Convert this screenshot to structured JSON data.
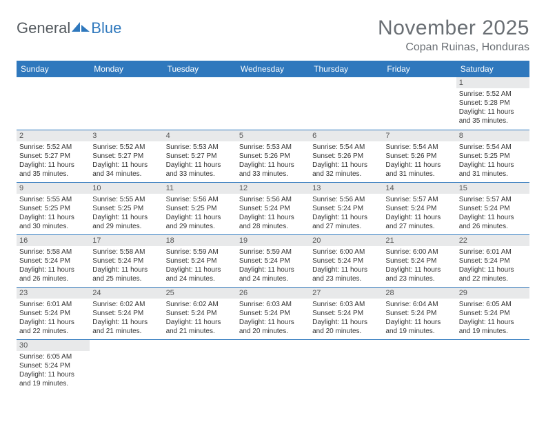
{
  "logo": {
    "word1": "General",
    "word2": "Blue"
  },
  "title": "November 2025",
  "location": "Copan Ruinas, Honduras",
  "colors": {
    "header_bg": "#2f78bd",
    "header_text": "#ffffff",
    "daynum_bg": "#e8e9ea",
    "rule": "#2f78bd",
    "title_color": "#6a6f74"
  },
  "day_headers": [
    "Sunday",
    "Monday",
    "Tuesday",
    "Wednesday",
    "Thursday",
    "Friday",
    "Saturday"
  ],
  "weeks": [
    [
      null,
      null,
      null,
      null,
      null,
      null,
      {
        "n": "1",
        "rise": "5:52 AM",
        "set": "5:28 PM",
        "dlh": 11,
        "dlm": 35
      }
    ],
    [
      {
        "n": "2",
        "rise": "5:52 AM",
        "set": "5:27 PM",
        "dlh": 11,
        "dlm": 35
      },
      {
        "n": "3",
        "rise": "5:52 AM",
        "set": "5:27 PM",
        "dlh": 11,
        "dlm": 34
      },
      {
        "n": "4",
        "rise": "5:53 AM",
        "set": "5:27 PM",
        "dlh": 11,
        "dlm": 33
      },
      {
        "n": "5",
        "rise": "5:53 AM",
        "set": "5:26 PM",
        "dlh": 11,
        "dlm": 33
      },
      {
        "n": "6",
        "rise": "5:54 AM",
        "set": "5:26 PM",
        "dlh": 11,
        "dlm": 32
      },
      {
        "n": "7",
        "rise": "5:54 AM",
        "set": "5:26 PM",
        "dlh": 11,
        "dlm": 31
      },
      {
        "n": "8",
        "rise": "5:54 AM",
        "set": "5:25 PM",
        "dlh": 11,
        "dlm": 31
      }
    ],
    [
      {
        "n": "9",
        "rise": "5:55 AM",
        "set": "5:25 PM",
        "dlh": 11,
        "dlm": 30
      },
      {
        "n": "10",
        "rise": "5:55 AM",
        "set": "5:25 PM",
        "dlh": 11,
        "dlm": 29
      },
      {
        "n": "11",
        "rise": "5:56 AM",
        "set": "5:25 PM",
        "dlh": 11,
        "dlm": 29
      },
      {
        "n": "12",
        "rise": "5:56 AM",
        "set": "5:24 PM",
        "dlh": 11,
        "dlm": 28
      },
      {
        "n": "13",
        "rise": "5:56 AM",
        "set": "5:24 PM",
        "dlh": 11,
        "dlm": 27
      },
      {
        "n": "14",
        "rise": "5:57 AM",
        "set": "5:24 PM",
        "dlh": 11,
        "dlm": 27
      },
      {
        "n": "15",
        "rise": "5:57 AM",
        "set": "5:24 PM",
        "dlh": 11,
        "dlm": 26
      }
    ],
    [
      {
        "n": "16",
        "rise": "5:58 AM",
        "set": "5:24 PM",
        "dlh": 11,
        "dlm": 26
      },
      {
        "n": "17",
        "rise": "5:58 AM",
        "set": "5:24 PM",
        "dlh": 11,
        "dlm": 25
      },
      {
        "n": "18",
        "rise": "5:59 AM",
        "set": "5:24 PM",
        "dlh": 11,
        "dlm": 24
      },
      {
        "n": "19",
        "rise": "5:59 AM",
        "set": "5:24 PM",
        "dlh": 11,
        "dlm": 24
      },
      {
        "n": "20",
        "rise": "6:00 AM",
        "set": "5:24 PM",
        "dlh": 11,
        "dlm": 23
      },
      {
        "n": "21",
        "rise": "6:00 AM",
        "set": "5:24 PM",
        "dlh": 11,
        "dlm": 23
      },
      {
        "n": "22",
        "rise": "6:01 AM",
        "set": "5:24 PM",
        "dlh": 11,
        "dlm": 22
      }
    ],
    [
      {
        "n": "23",
        "rise": "6:01 AM",
        "set": "5:24 PM",
        "dlh": 11,
        "dlm": 22
      },
      {
        "n": "24",
        "rise": "6:02 AM",
        "set": "5:24 PM",
        "dlh": 11,
        "dlm": 21
      },
      {
        "n": "25",
        "rise": "6:02 AM",
        "set": "5:24 PM",
        "dlh": 11,
        "dlm": 21
      },
      {
        "n": "26",
        "rise": "6:03 AM",
        "set": "5:24 PM",
        "dlh": 11,
        "dlm": 20
      },
      {
        "n": "27",
        "rise": "6:03 AM",
        "set": "5:24 PM",
        "dlh": 11,
        "dlm": 20
      },
      {
        "n": "28",
        "rise": "6:04 AM",
        "set": "5:24 PM",
        "dlh": 11,
        "dlm": 19
      },
      {
        "n": "29",
        "rise": "6:05 AM",
        "set": "5:24 PM",
        "dlh": 11,
        "dlm": 19
      }
    ],
    [
      {
        "n": "30",
        "rise": "6:05 AM",
        "set": "5:24 PM",
        "dlh": 11,
        "dlm": 19
      },
      null,
      null,
      null,
      null,
      null,
      null
    ]
  ],
  "labels": {
    "sunrise": "Sunrise:",
    "sunset": "Sunset:",
    "daylight": "Daylight:",
    "hours_word": "hours",
    "and_word": "and",
    "minutes_word": "minutes."
  }
}
